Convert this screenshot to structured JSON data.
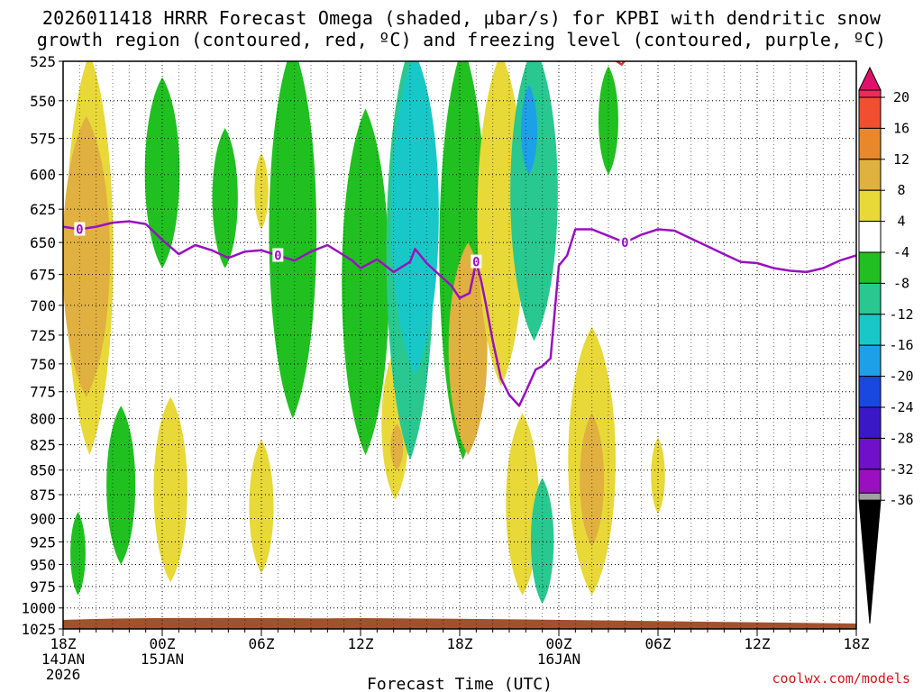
{
  "title": {
    "line1": "2026011418 HRRR Forecast Omega (shaded, μbar/s) for KPBI with dendritic snow",
    "line2": "growth region (contoured, red, ºC) and freezing level (contoured, purple, ºC)"
  },
  "credit": "coolwx.com/models",
  "chart_data": {
    "type": "heatmap",
    "title": "2026011418 HRRR Forecast Omega (shaded, μbar/s) for KPBI with dendritic snow growth region (contoured, red, ºC) and freezing level (contoured, purple, ºC)",
    "xlabel": "Forecast Time (UTC)",
    "ylabel": "",
    "x_ticks": [
      {
        "hour": 0,
        "label": "18Z",
        "date": "14JAN",
        "year": "2026"
      },
      {
        "hour": 6,
        "label": "00Z",
        "date": "15JAN"
      },
      {
        "hour": 12,
        "label": "06Z"
      },
      {
        "hour": 18,
        "label": "12Z"
      },
      {
        "hour": 24,
        "label": "18Z"
      },
      {
        "hour": 30,
        "label": "00Z",
        "date": "16JAN"
      },
      {
        "hour": 36,
        "label": "06Z"
      },
      {
        "hour": 42,
        "label": "12Z"
      },
      {
        "hour": 48,
        "label": "18Z"
      }
    ],
    "xlim": [
      0,
      48
    ],
    "y_ticks": [
      525,
      550,
      575,
      600,
      625,
      650,
      675,
      700,
      725,
      750,
      775,
      800,
      825,
      850,
      875,
      900,
      925,
      950,
      975,
      1000,
      1025
    ],
    "ylim": [
      525,
      1025
    ],
    "y_scale": "log",
    "grid": true,
    "colorbar": {
      "ticks": [
        20,
        16,
        12,
        8,
        4,
        -4,
        -8,
        -12,
        -16,
        -20,
        -24,
        -28,
        -32,
        -36
      ],
      "colors": [
        "#f2285a",
        "#f05030",
        "#e8882a",
        "#e0b040",
        "#e8d838",
        "#ffffff",
        "#20c020",
        "#28c890",
        "#18c8c8",
        "#1ea0e8",
        "#1848e0",
        "#3a18c8",
        "#7010c8",
        "#9a10c0",
        "#a0a0a0",
        "#000000",
        "#e0106a"
      ]
    },
    "freezing_level_label": "0",
    "freezing_level": {
      "hour": [
        0,
        1,
        2,
        3,
        4,
        5,
        6,
        7,
        8,
        9,
        10,
        11,
        12,
        13,
        14,
        15,
        16,
        17,
        17.5,
        18,
        19,
        20,
        21,
        21.3,
        22,
        22.5,
        23,
        23.5,
        24,
        24.6,
        25,
        25.3,
        25.6,
        26,
        26.5,
        27,
        27.6,
        28,
        28.6,
        29,
        29.5,
        30,
        30.5,
        31,
        32,
        33,
        34,
        35,
        36,
        37,
        38,
        39,
        40,
        41,
        42,
        43,
        44,
        45,
        46,
        47,
        48
      ],
      "pressure": [
        638,
        640,
        638,
        635,
        634,
        636,
        648,
        659,
        652,
        656,
        662,
        657,
        656,
        660,
        664,
        657,
        652,
        660,
        664,
        670,
        663,
        673,
        665,
        655,
        666,
        672,
        678,
        684,
        694,
        690,
        665,
        680,
        700,
        730,
        763,
        778,
        788,
        775,
        755,
        752,
        745,
        668,
        660,
        640,
        640,
        645,
        650,
        644,
        640,
        641,
        647,
        653,
        659,
        665,
        666,
        670,
        672,
        673,
        670,
        664,
        660
      ]
    },
    "dendritic_contour": {
      "hour": [
        31,
        31.5,
        32,
        32.7,
        33.2,
        33.8,
        34.2,
        34.6
      ],
      "pressure": [
        513,
        518,
        521,
        521,
        523,
        527,
        522,
        516
      ]
    },
    "omega_regions": [
      {
        "value": 6,
        "hour": 1.6,
        "pmin": 520,
        "pmax": 835,
        "cx": 1.7
      },
      {
        "value": 10,
        "hour": 1.4,
        "pmin": 560,
        "pmax": 780,
        "cx": 1.4
      },
      {
        "value": -6,
        "hour": 0.9,
        "pmin": 893,
        "pmax": 985
      },
      {
        "value": -6,
        "hour": 3.5,
        "pmin": 788,
        "pmax": 950
      },
      {
        "value": 6,
        "hour": 6.5,
        "pmin": 780,
        "pmax": 970
      },
      {
        "value": -6,
        "hour": 6.0,
        "pmin": 535,
        "pmax": 670
      },
      {
        "value": -6,
        "hour": 9.8,
        "pmin": 568,
        "pmax": 670
      },
      {
        "value": 6,
        "hour": 12.0,
        "pmin": 585,
        "pmax": 640
      },
      {
        "value": 6,
        "hour": 12.0,
        "pmin": 820,
        "pmax": 960
      },
      {
        "value": -6,
        "hour": 13.9,
        "pmin": 515,
        "pmax": 800
      },
      {
        "value": -6,
        "hour": 18.3,
        "pmin": 555,
        "pmax": 835
      },
      {
        "value": 6,
        "hour": 20.1,
        "pmin": 737,
        "pmax": 880
      },
      {
        "value": 10,
        "hour": 20.2,
        "pmin": 805,
        "pmax": 850
      },
      {
        "value": -10,
        "hour": 21.0,
        "pmin": 515,
        "pmax": 840
      },
      {
        "value": -14,
        "hour": 21.3,
        "pmin": 520,
        "pmax": 760
      },
      {
        "value": -6,
        "hour": 24.2,
        "pmin": 515,
        "pmax": 840
      },
      {
        "value": 10,
        "hour": 24.5,
        "pmin": 650,
        "pmax": 835
      },
      {
        "value": 6,
        "hour": 26.5,
        "pmin": 520,
        "pmax": 770
      },
      {
        "value": -10,
        "hour": 28.5,
        "pmin": 515,
        "pmax": 730
      },
      {
        "value": -16,
        "hour": 28.2,
        "pmin": 540,
        "pmax": 600
      },
      {
        "value": 6,
        "hour": 27.8,
        "pmin": 795,
        "pmax": 985
      },
      {
        "value": -10,
        "hour": 29.0,
        "pmin": 858,
        "pmax": 995
      },
      {
        "value": 6,
        "hour": 32.0,
        "pmin": 718,
        "pmax": 985
      },
      {
        "value": 10,
        "hour": 32.0,
        "pmin": 795,
        "pmax": 930
      },
      {
        "value": 6,
        "hour": 36.0,
        "pmin": 818,
        "pmax": 895
      },
      {
        "value": -6,
        "hour": 33.0,
        "pmin": 528,
        "pmax": 600
      }
    ]
  }
}
